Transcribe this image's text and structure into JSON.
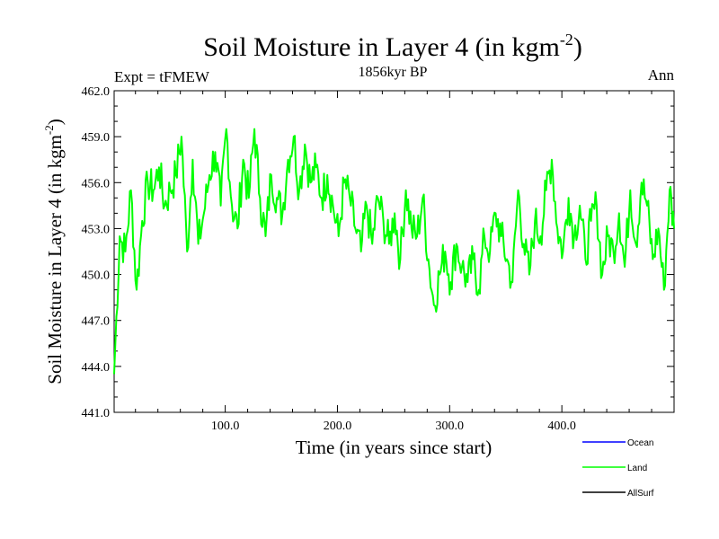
{
  "chart_data": {
    "type": "line",
    "title": "Soil Moisture in Layer 4 (in kgm",
    "title_sup": "-2",
    "title_close": ")",
    "subtitle_left": "Expt = tFMEW",
    "subtitle_center": "1856kyr BP",
    "subtitle_right": "Ann",
    "xlabel": "Time (in years since start)",
    "ylabel": "Soil Moisture in Layer 4 (in kgm",
    "ylabel_sup": "-2",
    "ylabel_close": ")",
    "xlim": [
      1,
      500
    ],
    "ylim": [
      441.0,
      462.0
    ],
    "x_ticks": [
      100,
      200,
      300,
      400
    ],
    "x_tick_labels": [
      "100.0",
      "200.0",
      "300.0",
      "400.0"
    ],
    "y_ticks": [
      441,
      444,
      447,
      450,
      453,
      456,
      459,
      462
    ],
    "y_tick_labels": [
      "441.0",
      "444.0",
      "447.0",
      "450.0",
      "453.0",
      "456.0",
      "459.0",
      "462.0"
    ],
    "grid": false,
    "legend_position": "bottom-right",
    "series": [
      {
        "name": "Ocean",
        "color": "#0000ff",
        "values": []
      },
      {
        "name": "Land",
        "color": "#00ff00",
        "x": [
          1,
          6,
          11,
          16,
          21,
          26,
          31,
          36,
          41,
          46,
          51,
          56,
          61,
          66,
          71,
          76,
          81,
          86,
          91,
          96,
          101,
          106,
          111,
          116,
          121,
          126,
          131,
          136,
          141,
          146,
          151,
          156,
          161,
          166,
          171,
          176,
          181,
          186,
          191,
          196,
          201,
          206,
          211,
          216,
          221,
          226,
          231,
          236,
          241,
          246,
          251,
          256,
          261,
          266,
          271,
          276,
          281,
          286,
          291,
          296,
          301,
          306,
          311,
          316,
          321,
          326,
          331,
          336,
          341,
          346,
          351,
          356,
          361,
          366,
          371,
          376,
          381,
          386,
          391,
          396,
          401,
          406,
          411,
          416,
          421,
          426,
          431,
          436,
          441,
          446,
          451,
          456,
          461,
          466,
          471,
          476,
          481,
          486,
          491,
          496,
          500
        ],
        "values": [
          443.5,
          452.5,
          451.5,
          455.5,
          449.0,
          453.5,
          456.0,
          455.5,
          457.0,
          454.5,
          455.5,
          456.5,
          459.0,
          451.5,
          457.5,
          452.0,
          454.0,
          456.5,
          458.0,
          454.5,
          459.5,
          454.5,
          453.0,
          457.5,
          455.0,
          459.5,
          455.0,
          452.5,
          456.5,
          455.0,
          454.0,
          457.5,
          459.0,
          455.5,
          458.5,
          456.0,
          457.0,
          455.0,
          456.5,
          454.5,
          452.5,
          456.0,
          455.0,
          453.0,
          451.5,
          454.5,
          452.0,
          455.0,
          453.5,
          452.0,
          454.0,
          451.0,
          455.5,
          453.0,
          452.5,
          455.0,
          451.0,
          448.0,
          450.0,
          451.5,
          449.5,
          452.0,
          450.5,
          449.5,
          451.0,
          449.0,
          452.5,
          451.5,
          454.0,
          452.5,
          451.0,
          449.5,
          455.5,
          452.0,
          450.0,
          453.5,
          452.5,
          455.5,
          457.5,
          453.0,
          451.5,
          455.0,
          452.5,
          454.5,
          451.0,
          453.5,
          454.5,
          450.0,
          452.5,
          451.5,
          454.0,
          450.5,
          455.5,
          452.0,
          456.0,
          454.5,
          451.0,
          453.0,
          449.0,
          455.5,
          453.0
        ]
      },
      {
        "name": "AllSurf",
        "color": "#000000",
        "values": []
      }
    ]
  }
}
